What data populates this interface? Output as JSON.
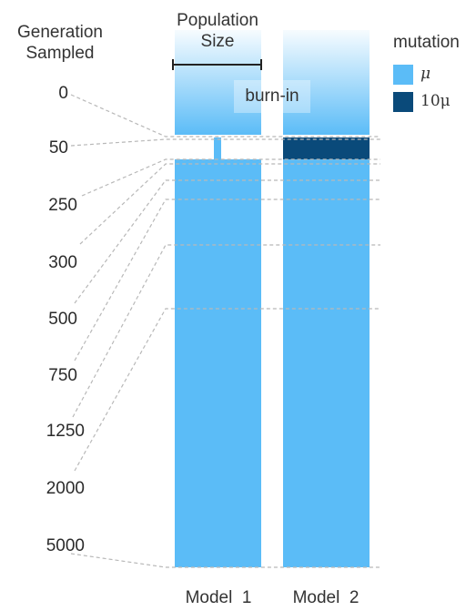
{
  "header": {
    "generation_label": "Generation\nSampled",
    "population_label": "Population\nSize"
  },
  "legend": {
    "title": "mutation",
    "items": [
      {
        "label": "μ",
        "color": "#5bbcf7"
      },
      {
        "label": "10μ",
        "color": "#0a4a7a"
      }
    ]
  },
  "burn_in_label": "burn-in",
  "generations": [
    "0",
    "50",
    "250",
    "300",
    "500",
    "750",
    "1250",
    "2000",
    "5000"
  ],
  "models": [
    {
      "label": "Model  1",
      "mutation": "μ"
    },
    {
      "label": "Model  2",
      "mutation": "10μ"
    }
  ],
  "colors": {
    "mu": "#5bbcf7",
    "ten_mu": "#0a4a7a",
    "dash": "#b8b8b8"
  }
}
